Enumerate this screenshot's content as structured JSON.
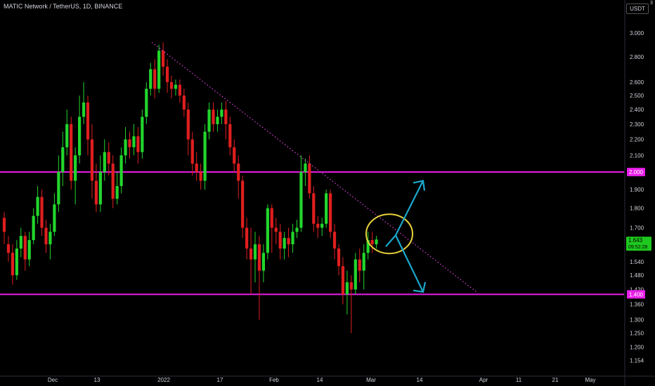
{
  "header": {
    "title": "MATIC Network / TetherUS, 1D, BINANCE"
  },
  "price_scale": {
    "currency": "USDT",
    "mode_indicator": "3"
  },
  "colors": {
    "background": "#000000",
    "up": "#22d62c",
    "down": "#e01e1e",
    "level_line": "#e81ee8",
    "trendline": "#e040e0",
    "circle": "#e8d23a",
    "arrow": "#1aa8cc",
    "last_price_bg": "#1ec81e"
  },
  "chart_data": {
    "type": "candlestick",
    "y_scale": "log",
    "ylim": [
      1.13,
      3.12
    ],
    "yticks": [
      3.0,
      2.8,
      2.6,
      2.5,
      2.4,
      2.3,
      2.2,
      2.1,
      1.9,
      1.8,
      1.7,
      1.54,
      1.48,
      1.42,
      1.36,
      1.3,
      1.25,
      1.2,
      1.154
    ],
    "xticks": [
      "Dec",
      "13",
      "2022",
      "17",
      "Feb",
      "14",
      "Mar",
      "14",
      "Apr",
      "11",
      "21",
      "May"
    ],
    "horizontal_levels": [
      {
        "label": "2.000",
        "price": 2.0
      },
      {
        "label": "1.400",
        "price": 1.4
      }
    ],
    "last_price": {
      "label": "1.643",
      "countdown": "09:52:28"
    },
    "trendline": {
      "from_price": 2.92,
      "to_price": 1.41,
      "style": "dotted"
    },
    "candles": [
      [
        1.75,
        1.68,
        1.78,
        1.62
      ],
      [
        1.62,
        1.58,
        1.66,
        1.54
      ],
      [
        1.58,
        1.48,
        1.62,
        1.44
      ],
      [
        1.48,
        1.6,
        1.64,
        1.46
      ],
      [
        1.6,
        1.66,
        1.7,
        1.56
      ],
      [
        1.66,
        1.55,
        1.68,
        1.5
      ],
      [
        1.55,
        1.64,
        1.68,
        1.52
      ],
      [
        1.64,
        1.76,
        1.8,
        1.62
      ],
      [
        1.76,
        1.86,
        1.92,
        1.72
      ],
      [
        1.86,
        1.7,
        1.9,
        1.66
      ],
      [
        1.7,
        1.62,
        1.74,
        1.58
      ],
      [
        1.62,
        1.68,
        1.72,
        1.55
      ],
      [
        1.68,
        1.82,
        1.88,
        1.66
      ],
      [
        1.82,
        2.0,
        2.1,
        1.78
      ],
      [
        2.0,
        2.15,
        2.25,
        1.92
      ],
      [
        2.15,
        2.3,
        2.4,
        2.1
      ],
      [
        2.3,
        1.95,
        2.35,
        1.9
      ],
      [
        1.95,
        2.1,
        2.15,
        1.82
      ],
      [
        2.1,
        2.35,
        2.5,
        2.05
      ],
      [
        2.35,
        2.45,
        2.6,
        2.3
      ],
      [
        2.45,
        2.2,
        2.5,
        2.1
      ],
      [
        2.2,
        1.95,
        2.3,
        1.85
      ],
      [
        1.95,
        1.82,
        2.05,
        1.78
      ],
      [
        1.82,
        2.0,
        2.1,
        1.78
      ],
      [
        2.0,
        2.12,
        2.2,
        1.95
      ],
      [
        2.12,
        2.05,
        2.18,
        1.98
      ],
      [
        2.05,
        1.85,
        2.1,
        1.8
      ],
      [
        1.85,
        1.92,
        2.0,
        1.82
      ],
      [
        1.92,
        2.1,
        2.15,
        1.88
      ],
      [
        2.1,
        2.2,
        2.28,
        2.05
      ],
      [
        2.2,
        2.15,
        2.25,
        2.08
      ],
      [
        2.15,
        2.22,
        2.3,
        2.1
      ],
      [
        2.22,
        2.12,
        2.28,
        2.05
      ],
      [
        2.12,
        2.35,
        2.4,
        2.08
      ],
      [
        2.35,
        2.55,
        2.6,
        2.3
      ],
      [
        2.55,
        2.7,
        2.75,
        2.5
      ],
      [
        2.7,
        2.55,
        2.78,
        2.48
      ],
      [
        2.55,
        2.85,
        2.9,
        2.52
      ],
      [
        2.85,
        2.72,
        2.92,
        2.65
      ],
      [
        2.72,
        2.6,
        2.78,
        2.52
      ],
      [
        2.6,
        2.55,
        2.65,
        2.48
      ],
      [
        2.55,
        2.58,
        2.62,
        2.5
      ],
      [
        2.58,
        2.5,
        2.62,
        2.45
      ],
      [
        2.5,
        2.4,
        2.55,
        2.35
      ],
      [
        2.4,
        2.2,
        2.45,
        2.1
      ],
      [
        2.2,
        2.05,
        2.25,
        1.98
      ],
      [
        2.05,
        2.0,
        2.12,
        1.95
      ],
      [
        2.0,
        1.95,
        2.05,
        1.9
      ],
      [
        1.95,
        2.25,
        2.3,
        1.9
      ],
      [
        2.25,
        2.4,
        2.45,
        2.2
      ],
      [
        2.4,
        2.3,
        2.45,
        2.25
      ],
      [
        2.3,
        2.35,
        2.4,
        2.25
      ],
      [
        2.35,
        2.4,
        2.45,
        2.3
      ],
      [
        2.4,
        2.3,
        2.46,
        2.2
      ],
      [
        2.3,
        2.15,
        2.35,
        2.1
      ],
      [
        2.15,
        2.05,
        2.2,
        2.0
      ],
      [
        2.05,
        1.95,
        2.1,
        1.85
      ],
      [
        1.95,
        1.7,
        1.98,
        1.65
      ],
      [
        1.7,
        1.6,
        1.75,
        1.55
      ],
      [
        1.6,
        1.55,
        1.7,
        1.4
      ],
      [
        1.55,
        1.62,
        1.68,
        1.45
      ],
      [
        1.62,
        1.5,
        1.66,
        1.3
      ],
      [
        1.5,
        1.58,
        1.62,
        1.45
      ],
      [
        1.58,
        1.8,
        1.82,
        1.55
      ],
      [
        1.8,
        1.7,
        1.82,
        1.58
      ],
      [
        1.7,
        1.68,
        1.75,
        1.62
      ],
      [
        1.68,
        1.6,
        1.72,
        1.55
      ],
      [
        1.6,
        1.65,
        1.68,
        1.55
      ],
      [
        1.65,
        1.62,
        1.7,
        1.56
      ],
      [
        1.62,
        1.68,
        1.72,
        1.58
      ],
      [
        1.68,
        1.7,
        1.74,
        1.65
      ],
      [
        1.7,
        2.0,
        2.1,
        1.68
      ],
      [
        2.0,
        2.05,
        2.08,
        1.92
      ],
      [
        2.05,
        1.88,
        2.1,
        1.85
      ],
      [
        1.88,
        1.72,
        1.92,
        1.68
      ],
      [
        1.72,
        1.7,
        1.76,
        1.65
      ],
      [
        1.7,
        1.72,
        1.75,
        1.66
      ],
      [
        1.72,
        1.88,
        1.9,
        1.7
      ],
      [
        1.88,
        1.68,
        1.9,
        1.65
      ],
      [
        1.68,
        1.6,
        1.72,
        1.55
      ],
      [
        1.6,
        1.52,
        1.62,
        1.48
      ],
      [
        1.52,
        1.4,
        1.56,
        1.36
      ],
      [
        1.4,
        1.45,
        1.5,
        1.32
      ],
      [
        1.45,
        1.42,
        1.48,
        1.25
      ],
      [
        1.42,
        1.55,
        1.58,
        1.4
      ],
      [
        1.55,
        1.5,
        1.6,
        1.45
      ],
      [
        1.5,
        1.58,
        1.62,
        1.42
      ],
      [
        1.58,
        1.64,
        1.68,
        1.55
      ],
      [
        1.64,
        1.62,
        1.68,
        1.58
      ],
      [
        1.62,
        1.643,
        1.66,
        1.6
      ]
    ]
  },
  "annotations": {
    "circle_price": 1.67,
    "arrow_up_target": 1.95,
    "arrow_down_target": 1.41
  }
}
